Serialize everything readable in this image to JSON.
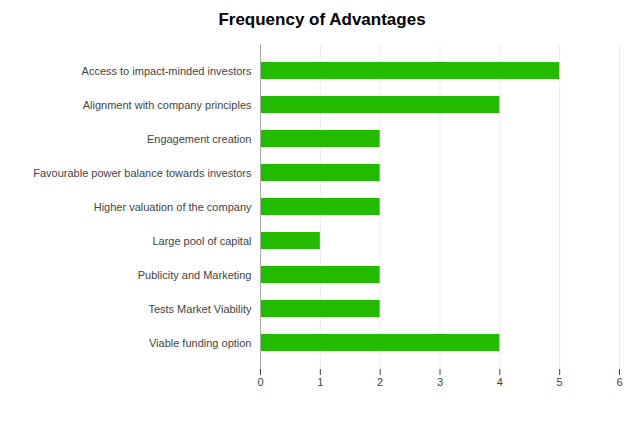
{
  "chart_data": {
    "type": "bar",
    "orientation": "horizontal",
    "title": "Frequency of Advantages",
    "categories": [
      "Viable funding option",
      "Tests Market Viability",
      "Publicity and Marketing",
      "Large pool of capital",
      "Higher valuation of the company",
      "Favourable power balance towards investors",
      "Engagement creation",
      "Alignment with company principles",
      "Access to impact-minded investors"
    ],
    "values": [
      4,
      2,
      2,
      1,
      2,
      2,
      2,
      4,
      5
    ],
    "color": "#22BB00",
    "xlim": [
      0,
      6
    ],
    "xticks": [
      0,
      1,
      2,
      3,
      4,
      5,
      6
    ],
    "grid": true
  }
}
